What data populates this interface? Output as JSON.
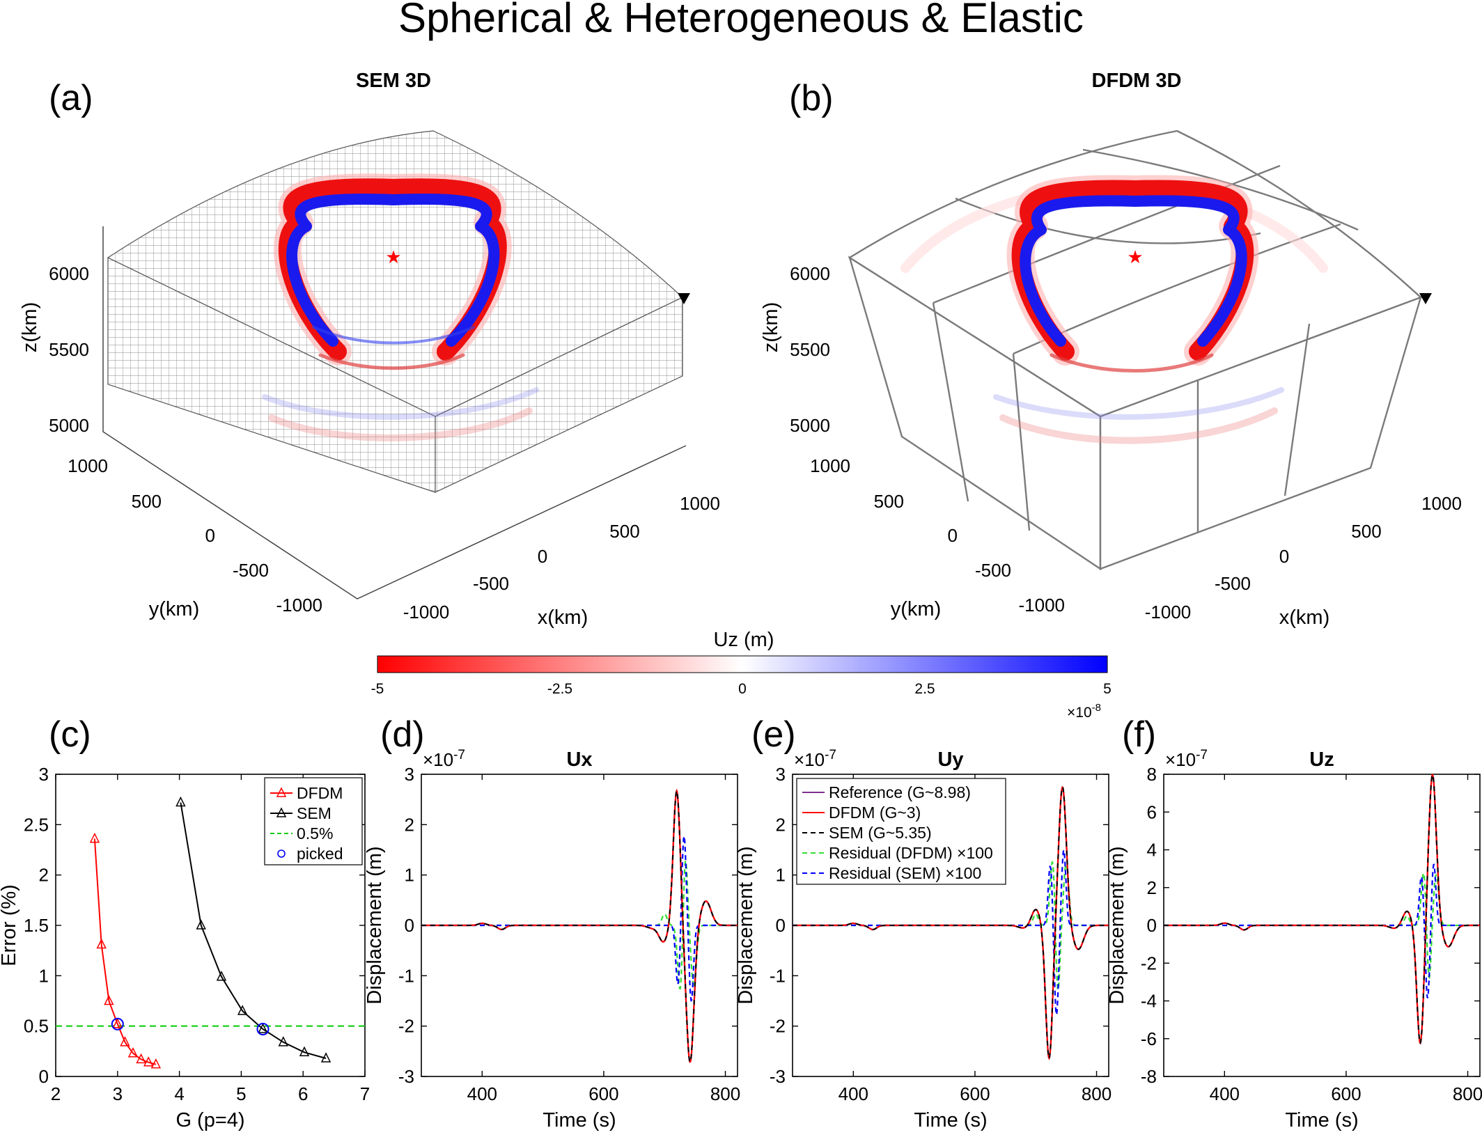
{
  "figure": {
    "title": "Spherical & Heterogeneous & Elastic",
    "panel_labels": [
      "(a)",
      "(b)",
      "(c)",
      "(d)",
      "(e)",
      "(f)"
    ]
  },
  "panel_a": {
    "title": "SEM 3D"
  },
  "panel_b": {
    "title": "DFDM 3D"
  },
  "axes3d": {
    "zlabel": "z(km)",
    "ylabel": "y(km)",
    "xlabel": "x(km)",
    "zticks": [
      "6000",
      "5500",
      "5000"
    ],
    "yticks": [
      "1000",
      "500",
      "0",
      "-500",
      "-1000"
    ],
    "xticks": [
      "-1000",
      "-500",
      "0",
      "500",
      "1000"
    ]
  },
  "colorbar": {
    "label": "Uz (m)",
    "ticks": [
      "-5",
      "-2.5",
      "0",
      "2.5",
      "5"
    ],
    "exponent": "×10",
    "exponent_power": "-8",
    "colors": {
      "negative": "#ff0000",
      "zero": "#ffffff",
      "positive": "#0000ff"
    }
  },
  "colors": {
    "dfdm": "#ff0000",
    "sem": "#000000",
    "threshold": "#00cc00",
    "picked": "#0000ff",
    "reference": "#7e2f8e",
    "residual_dfdm": "#33dd33",
    "residual_sem": "#0000ff",
    "source": "#ff0000",
    "receiver": "#000000"
  },
  "chart_data": [
    {
      "id": "c",
      "type": "line",
      "xlabel": "G (p=4)",
      "ylabel": "Error (%)",
      "xlim": [
        2,
        7
      ],
      "ylim": [
        0,
        3
      ],
      "xticks": [
        "2",
        "3",
        "4",
        "5",
        "6",
        "7"
      ],
      "yticks": [
        "0",
        "0.5",
        "1",
        "1.5",
        "2",
        "2.5",
        "3"
      ],
      "legend": {
        "position": "top-right",
        "entries": [
          "DFDM",
          "SEM",
          "0.5%",
          "picked"
        ]
      },
      "series": [
        {
          "name": "DFDM",
          "marker": "triangle",
          "x": [
            2.63,
            2.74,
            2.86,
            3.0,
            3.12,
            3.25,
            3.38,
            3.5,
            3.62
          ],
          "y": [
            2.36,
            1.31,
            0.75,
            0.52,
            0.34,
            0.23,
            0.17,
            0.14,
            0.12
          ]
        },
        {
          "name": "SEM",
          "marker": "triangle",
          "x": [
            4.02,
            4.35,
            4.68,
            5.02,
            5.35,
            5.68,
            6.02,
            6.37
          ],
          "y": [
            2.72,
            1.5,
            0.99,
            0.65,
            0.47,
            0.34,
            0.24,
            0.18
          ]
        },
        {
          "name": "0.5%",
          "x": [
            2,
            7
          ],
          "y": [
            0.5,
            0.5
          ]
        },
        {
          "name": "picked",
          "x": [
            3.0,
            5.35
          ],
          "y": [
            0.52,
            0.47
          ]
        }
      ]
    },
    {
      "id": "d",
      "type": "line",
      "title": "Ux",
      "xlabel": "Time (s)",
      "ylabel": "Displacement (m)",
      "exponent": "×10",
      "exponent_power": "-7",
      "xlim": [
        300,
        820
      ],
      "ylim": [
        -3,
        3
      ],
      "xticks": [
        "400",
        "600",
        "800"
      ],
      "yticks": [
        "-3",
        "-2",
        "-1",
        "0",
        "1",
        "2",
        "3"
      ],
      "waveform": {
        "main_times": [
          720,
          742
        ],
        "main_amps": [
          2.68,
          -2.72
        ],
        "residual_amp": 1.5
      }
    },
    {
      "id": "e",
      "type": "line",
      "title": "Uy",
      "xlabel": "Time (s)",
      "ylabel": "Displacement (m)",
      "exponent": "×10",
      "exponent_power": "-7",
      "xlim": [
        300,
        820
      ],
      "ylim": [
        -3,
        3
      ],
      "xticks": [
        "400",
        "600",
        "800"
      ],
      "yticks": [
        "-3",
        "-2",
        "-1",
        "0",
        "1",
        "2",
        "3"
      ],
      "legend": {
        "position": "top-left",
        "entries": [
          "Reference (G~8.98)",
          "DFDM (G~3)",
          "SEM (G~5.35)",
          "Residual (DFDM) ×100",
          "Residual (SEM) ×100"
        ]
      },
      "waveform": {
        "main_times": [
          722,
          744
        ],
        "main_amps": [
          -2.65,
          2.75
        ],
        "residual_amp": 1.5
      }
    },
    {
      "id": "f",
      "type": "line",
      "title": "Uz",
      "xlabel": "Time (s)",
      "ylabel": "Displacement (m)",
      "exponent": "×10",
      "exponent_power": "-7",
      "xlim": [
        300,
        820
      ],
      "ylim": [
        -8,
        8
      ],
      "xticks": [
        "400",
        "600",
        "800"
      ],
      "yticks": [
        "-8",
        "-6",
        "-4",
        "-2",
        "0",
        "2",
        "4",
        "6",
        "8"
      ],
      "waveform": {
        "main_times": [
          722,
          742
        ],
        "main_amps": [
          -6.3,
          8.0
        ],
        "residual_amp": 3.3
      }
    }
  ]
}
